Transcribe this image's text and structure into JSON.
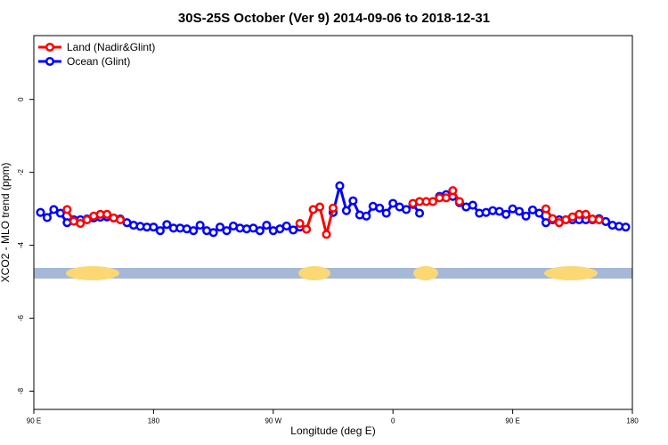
{
  "chart_data": {
    "type": "line",
    "title": "30S-25S October (Ver 9)   2014-09-06 to 2018-12-31",
    "x_label": "Longitude (deg E)",
    "y_label": "XCO2 - MLO trend (ppm)",
    "x": [
      95,
      100,
      105,
      110,
      115,
      120,
      125,
      130,
      135,
      140,
      145,
      150,
      155,
      160,
      165,
      170,
      175,
      180,
      185,
      190,
      195,
      200,
      205,
      210,
      215,
      220,
      225,
      230,
      235,
      240,
      245,
      250,
      255,
      260,
      265,
      270,
      275,
      280,
      285,
      290,
      295,
      300,
      305,
      310,
      315,
      320,
      325,
      330,
      335,
      340,
      345,
      350,
      355,
      360,
      365,
      370,
      375,
      380,
      385,
      390,
      395,
      400,
      405,
      410,
      415,
      420,
      425,
      430,
      435,
      440,
      445,
      450,
      455,
      460,
      465,
      470,
      475,
      480,
      485,
      490,
      495,
      500,
      505,
      510,
      515,
      520,
      525,
      530,
      535
    ],
    "series": [
      {
        "name": "Ocean (Glint)",
        "color": "#0000ff",
        "values": [
          -3.1,
          -3.24,
          -3.02,
          -3.12,
          -3.38,
          -3.3,
          -3.3,
          -3.28,
          -3.25,
          -3.23,
          -3.22,
          -3.25,
          -3.28,
          -3.38,
          -3.45,
          -3.48,
          -3.5,
          -3.5,
          -3.6,
          -3.43,
          -3.53,
          -3.53,
          -3.55,
          -3.6,
          -3.45,
          -3.6,
          -3.65,
          -3.5,
          -3.6,
          -3.47,
          -3.53,
          -3.55,
          -3.53,
          -3.6,
          -3.45,
          -3.6,
          -3.55,
          -3.47,
          -3.58,
          -3.5,
          null,
          null,
          null,
          null,
          -3.1,
          -2.37,
          -3.05,
          -2.78,
          -3.17,
          -3.2,
          -2.93,
          -2.98,
          -3.12,
          -2.85,
          -2.95,
          -3.02,
          -2.88,
          -3.12,
          null,
          null,
          -2.66,
          -2.61,
          -2.66,
          -2.83,
          -2.95,
          -2.9,
          -3.12,
          -3.1,
          -3.05,
          -3.07,
          -3.15,
          -3.0,
          -3.07,
          -3.2,
          -3.03,
          -3.12,
          -3.38,
          -3.3,
          -3.3,
          -3.3,
          -3.3,
          -3.3,
          -3.3,
          -3.3,
          -3.27,
          -3.35,
          -3.45,
          -3.48,
          -3.5
        ]
      },
      {
        "name": "Land (Nadir&Glint)",
        "color": "#ff0000",
        "values": [
          null,
          null,
          null,
          null,
          -3.02,
          -3.34,
          -3.4,
          -3.3,
          -3.2,
          -3.15,
          -3.15,
          -3.25,
          -3.3,
          null,
          null,
          null,
          null,
          null,
          null,
          null,
          null,
          null,
          null,
          null,
          null,
          null,
          null,
          null,
          null,
          null,
          null,
          null,
          null,
          null,
          null,
          null,
          null,
          null,
          null,
          -3.4,
          -3.56,
          -3.02,
          -2.95,
          -3.7,
          -2.98,
          null,
          null,
          null,
          null,
          null,
          null,
          null,
          null,
          null,
          null,
          null,
          -2.85,
          -2.8,
          -2.8,
          -2.8,
          -2.7,
          -2.7,
          -2.5,
          -2.8,
          null,
          null,
          null,
          null,
          null,
          null,
          null,
          null,
          null,
          null,
          null,
          null,
          -3.0,
          -3.27,
          -3.38,
          -3.3,
          -3.22,
          -3.15,
          -3.15,
          -3.28,
          -3.3,
          null,
          null,
          null,
          null
        ]
      }
    ],
    "legend_order": [
      1,
      0
    ],
    "xlim": [
      90,
      540
    ],
    "xticks": [
      {
        "value": 90,
        "label": "90 E"
      },
      180,
      {
        "value": 270,
        "label": "90 W"
      },
      {
        "value": 360,
        "label": "0"
      },
      {
        "value": 450,
        "label": "90 E"
      },
      {
        "value": 540,
        "label": "180"
      }
    ],
    "ylim": [
      -8.5,
      1.75
    ],
    "yticks": [
      -8,
      -6,
      -4,
      -2,
      0
    ],
    "legend": "top-left"
  }
}
